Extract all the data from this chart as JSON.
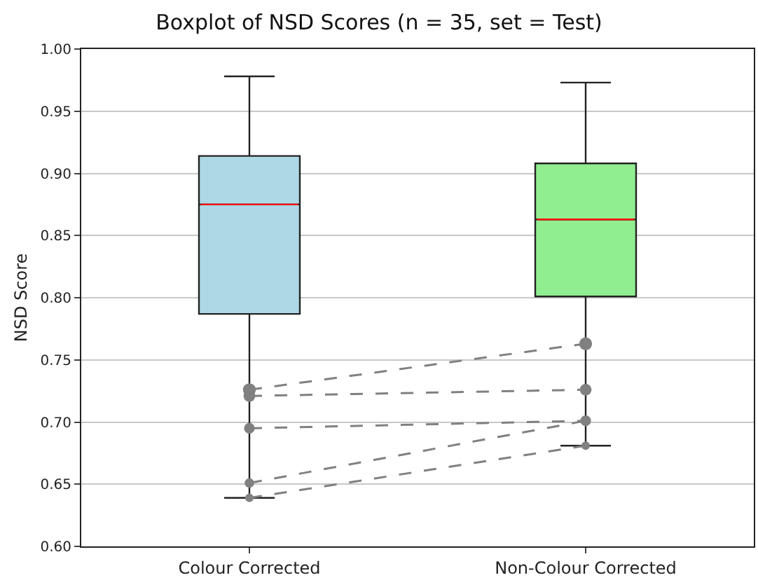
{
  "chart_data": {
    "type": "box",
    "title": "Boxplot of NSD Scores (n = 35, set = Test)",
    "ylabel": "NSD Score",
    "categories": [
      "Colour Corrected",
      "Non-Colour Corrected"
    ],
    "colors": [
      "#add8e6",
      "#90ee90"
    ],
    "boxes": [
      {
        "low": 0.639,
        "q1": 0.787,
        "median": 0.875,
        "q3": 0.914,
        "high": 0.978
      },
      {
        "low": 0.681,
        "q1": 0.801,
        "median": 0.863,
        "q3": 0.908,
        "high": 0.973
      }
    ],
    "series": [
      {
        "type": "line",
        "color": "#808080",
        "values": [
          0.726,
          0.763
        ]
      },
      {
        "type": "line",
        "color": "#808080",
        "values": [
          0.721,
          0.726
        ]
      },
      {
        "type": "line",
        "color": "#808080",
        "values": [
          0.695,
          0.701
        ]
      },
      {
        "type": "line",
        "color": "#808080",
        "values": [
          0.651,
          0.701
        ]
      },
      {
        "type": "line",
        "color": "#808080",
        "values": [
          0.639,
          0.681
        ]
      }
    ],
    "marker": "circle",
    "line_style": "dashed",
    "ylim": [
      0.6,
      1.0
    ],
    "yticks": [
      {
        "value": 0.6,
        "label": "0.60"
      },
      {
        "value": 0.65,
        "label": "0.65"
      },
      {
        "value": 0.7,
        "label": "0.70"
      },
      {
        "value": 0.75,
        "label": "0.75"
      },
      {
        "value": 0.8,
        "label": "0.80"
      },
      {
        "value": 0.85,
        "label": "0.85"
      },
      {
        "value": 0.9,
        "label": "0.90"
      },
      {
        "value": 0.95,
        "label": "0.95"
      },
      {
        "value": 1.0,
        "label": "1.00"
      }
    ],
    "grid": "y"
  }
}
